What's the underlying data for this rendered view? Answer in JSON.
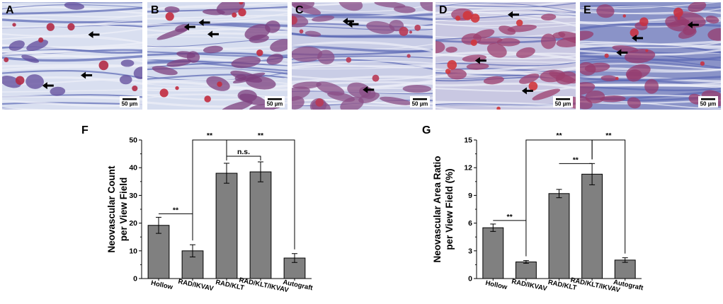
{
  "micrographs": [
    {
      "letter": "A",
      "scale": "50 µm",
      "background": "#d9dff0",
      "tissue": "#5f4a9a",
      "accent": "#b12a45"
    },
    {
      "letter": "B",
      "scale": "50 µm",
      "background": "#d6ddef",
      "tissue": "#7c3f7d",
      "accent": "#c22b3e"
    },
    {
      "letter": "C",
      "scale": "50 µm",
      "background": "#c9cde6",
      "tissue": "#8a4d86",
      "accent": "#b83a55"
    },
    {
      "letter": "D",
      "scale": "50 µm",
      "background": "#c9c8e2",
      "tissue": "#9c3f6d",
      "accent": "#d0363c"
    },
    {
      "letter": "E",
      "scale": "50 µm",
      "background": "#8a93c8",
      "tissue": "#953b6e",
      "accent": "#c83242"
    }
  ],
  "chart_data": [
    {
      "type": "bar",
      "panel": "F",
      "ylabel": [
        "Neovascular Count",
        "per View Field"
      ],
      "categories": [
        "Hollow",
        "RAD/IKVAV",
        "RAD/KLT",
        "RAD/KLT/IKVAV",
        "Autograft"
      ],
      "values": [
        19.2,
        10.0,
        38.0,
        38.5,
        7.4
      ],
      "errors": [
        2.9,
        2.2,
        3.6,
        3.6,
        1.6
      ],
      "ylim": [
        0,
        50
      ],
      "yticks": [
        "0",
        "10",
        "20",
        "30",
        "40",
        "50"
      ],
      "bar_color": "#808080",
      "significance": [
        {
          "from": "Hollow",
          "to": "RAD/IKVAV",
          "label": "**"
        },
        {
          "from": "RAD/KLT",
          "to": "RAD/KLT/IKVAV",
          "label": "n.s."
        },
        {
          "from": "RAD/IKVAV",
          "to": "RAD/KLT",
          "label": "**"
        },
        {
          "from": "RAD/KLT",
          "to": "Autograft",
          "label": "**"
        }
      ]
    },
    {
      "type": "bar",
      "panel": "G",
      "ylabel": [
        "Neovascular Area Ratio",
        "per View Field (%)"
      ],
      "categories": [
        "Hollow",
        "RAD/IKVAV",
        "RAD/KLT",
        "RAD/KLT/IKVAV",
        "Autograft"
      ],
      "values": [
        5.5,
        1.8,
        9.2,
        11.3,
        2.0
      ],
      "errors": [
        0.4,
        0.15,
        0.45,
        1.15,
        0.25
      ],
      "ylim": [
        0,
        15
      ],
      "yticks": [
        "0",
        "3",
        "6",
        "9",
        "12",
        "15"
      ],
      "bar_color": "#808080",
      "significance": [
        {
          "from": "Hollow",
          "to": "RAD/IKVAV",
          "label": "**"
        },
        {
          "from": "RAD/KLT",
          "to": "RAD/KLT/IKVAV",
          "label": "**"
        },
        {
          "from": "RAD/IKVAV",
          "to": "RAD/KLT/IKVAV",
          "label": "**"
        },
        {
          "from": "RAD/KLT/IKVAV",
          "to": "Autograft",
          "label": "**"
        }
      ]
    }
  ]
}
